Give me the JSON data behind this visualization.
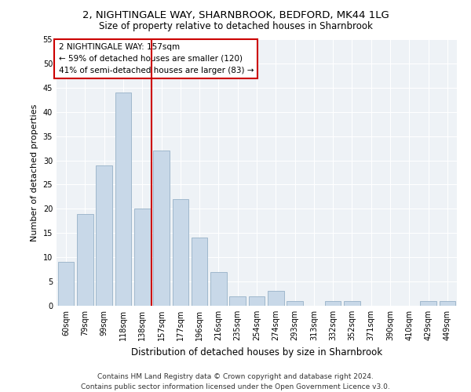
{
  "title1": "2, NIGHTINGALE WAY, SHARNBROOK, BEDFORD, MK44 1LG",
  "title2": "Size of property relative to detached houses in Sharnbrook",
  "xlabel": "Distribution of detached houses by size in Sharnbrook",
  "ylabel": "Number of detached properties",
  "categories": [
    "60sqm",
    "79sqm",
    "99sqm",
    "118sqm",
    "138sqm",
    "157sqm",
    "177sqm",
    "196sqm",
    "216sqm",
    "235sqm",
    "254sqm",
    "274sqm",
    "293sqm",
    "313sqm",
    "332sqm",
    "352sqm",
    "371sqm",
    "390sqm",
    "410sqm",
    "429sqm",
    "449sqm"
  ],
  "values": [
    9,
    19,
    29,
    44,
    20,
    32,
    22,
    14,
    7,
    2,
    2,
    3,
    1,
    0,
    1,
    1,
    0,
    0,
    0,
    1,
    1
  ],
  "bar_color": "#c8d8e8",
  "bar_edgecolor": "#a0b8cc",
  "marker_index": 5,
  "marker_color": "#cc0000",
  "annotation_lines": [
    "2 NIGHTINGALE WAY: 157sqm",
    "← 59% of detached houses are smaller (120)",
    "41% of semi-detached houses are larger (83) →"
  ],
  "annotation_box_color": "#ffffff",
  "annotation_box_edgecolor": "#cc0000",
  "ylim": [
    0,
    55
  ],
  "yticks": [
    0,
    5,
    10,
    15,
    20,
    25,
    30,
    35,
    40,
    45,
    50,
    55
  ],
  "background_color": "#eef2f6",
  "footer_text": "Contains HM Land Registry data © Crown copyright and database right 2024.\nContains public sector information licensed under the Open Government Licence v3.0.",
  "title1_fontsize": 9.5,
  "title2_fontsize": 8.5,
  "xlabel_fontsize": 8.5,
  "ylabel_fontsize": 8,
  "tick_fontsize": 7,
  "annotation_fontsize": 7.5,
  "footer_fontsize": 6.5
}
